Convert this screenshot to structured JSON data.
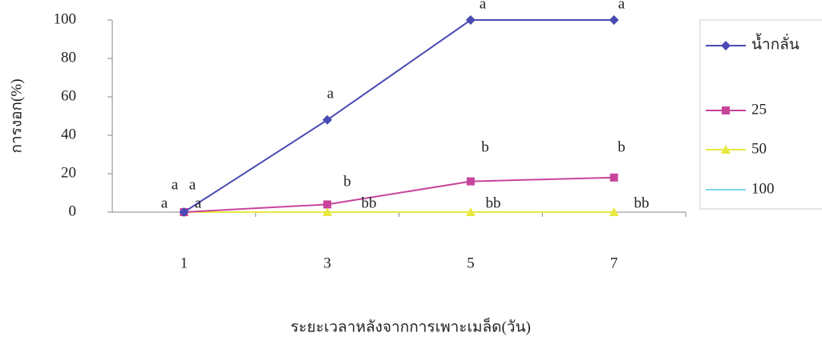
{
  "chart_data": {
    "type": "line",
    "y_label": "การงอก(%)",
    "x_label": "ระยะเวลาหลังจากการเพาะเมล็ด(วัน)",
    "categories": [
      "1",
      "3",
      "5",
      "7"
    ],
    "ylim": [
      0,
      100
    ],
    "yticks": [
      0,
      20,
      40,
      60,
      80,
      100
    ],
    "series": [
      {
        "name": "น้ำกลั่น",
        "color": "#4a4ab4",
        "marker": "diamond",
        "values": [
          0,
          48,
          100,
          100
        ]
      },
      {
        "name": "25",
        "color": "#c8449c",
        "marker": "square",
        "values": [
          0,
          4,
          16,
          18
        ]
      },
      {
        "name": "50",
        "color": "#e8e840",
        "marker": "triangle",
        "values": [
          0,
          0,
          0,
          0
        ]
      },
      {
        "name": "100",
        "color": "#7fd8ec",
        "marker": "none",
        "values": [
          0,
          0,
          0,
          0
        ]
      }
    ],
    "annotations": [
      "a",
      "a",
      "a",
      "a",
      "a",
      "b",
      "bb",
      "a",
      "b",
      "bb",
      "a",
      "b",
      "bb"
    ]
  }
}
